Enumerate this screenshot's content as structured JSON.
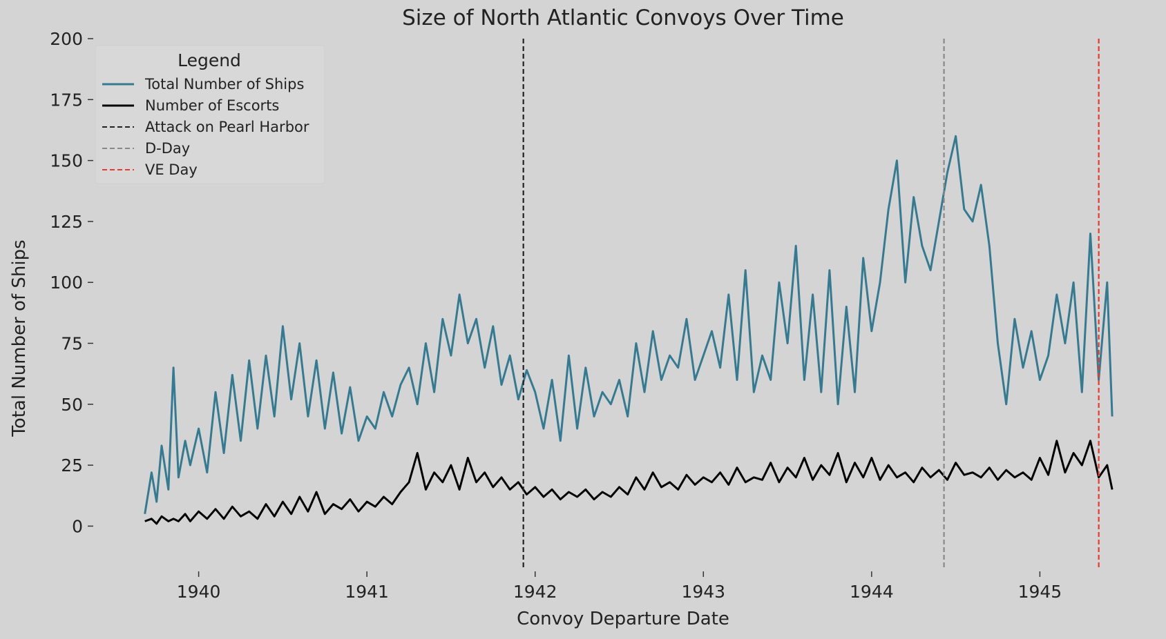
{
  "chart_data": {
    "type": "line",
    "title": "Size of North Atlantic Convoys Over Time",
    "xlabel": "Convoy Departure Date",
    "ylabel": "Total Number of Ships",
    "xlim": [
      1939.55,
      1945.45
    ],
    "ylim": [
      -18,
      200
    ],
    "yticks": [
      0,
      25,
      50,
      75,
      100,
      125,
      150,
      175,
      200
    ],
    "xticks": [
      1940,
      1941,
      1942,
      1943,
      1944,
      1945
    ],
    "grid": false,
    "legend": {
      "title": "Legend",
      "placement": "top-left"
    },
    "series": [
      {
        "name": "Total Number of Ships",
        "color": "#347a91",
        "x": [
          1939.68,
          1939.72,
          1939.75,
          1939.78,
          1939.82,
          1939.85,
          1939.88,
          1939.92,
          1939.95,
          1940.0,
          1940.05,
          1940.1,
          1940.15,
          1940.2,
          1940.25,
          1940.3,
          1940.35,
          1940.4,
          1940.45,
          1940.5,
          1940.55,
          1940.6,
          1940.65,
          1940.7,
          1940.75,
          1940.8,
          1940.85,
          1940.9,
          1940.95,
          1941.0,
          1941.05,
          1941.1,
          1941.15,
          1941.2,
          1941.25,
          1941.3,
          1941.35,
          1941.4,
          1941.45,
          1941.5,
          1941.55,
          1941.6,
          1941.65,
          1941.7,
          1941.75,
          1941.8,
          1941.85,
          1941.9,
          1941.95,
          1942.0,
          1942.05,
          1942.1,
          1942.15,
          1942.2,
          1942.25,
          1942.3,
          1942.35,
          1942.4,
          1942.45,
          1942.5,
          1942.55,
          1942.6,
          1942.65,
          1942.7,
          1942.75,
          1942.8,
          1942.85,
          1942.9,
          1942.95,
          1943.0,
          1943.05,
          1943.1,
          1943.15,
          1943.2,
          1943.25,
          1943.3,
          1943.35,
          1943.4,
          1943.45,
          1943.5,
          1943.55,
          1943.6,
          1943.65,
          1943.7,
          1943.75,
          1943.8,
          1943.85,
          1943.9,
          1943.95,
          1944.0,
          1944.05,
          1944.1,
          1944.15,
          1944.2,
          1944.25,
          1944.3,
          1944.35,
          1944.4,
          1944.45,
          1944.5,
          1944.55,
          1944.6,
          1944.65,
          1944.7,
          1944.75,
          1944.8,
          1944.85,
          1944.9,
          1944.95,
          1945.0,
          1945.05,
          1945.1,
          1945.15,
          1945.2,
          1945.25,
          1945.3,
          1945.35,
          1945.4,
          1945.43
        ],
        "y": [
          5,
          22,
          10,
          33,
          15,
          65,
          20,
          35,
          25,
          40,
          22,
          55,
          30,
          62,
          35,
          68,
          40,
          70,
          45,
          82,
          52,
          75,
          45,
          68,
          40,
          63,
          38,
          57,
          35,
          45,
          40,
          55,
          45,
          58,
          65,
          50,
          75,
          55,
          85,
          70,
          95,
          75,
          85,
          65,
          82,
          58,
          70,
          52,
          64,
          55,
          40,
          60,
          35,
          70,
          40,
          65,
          45,
          55,
          50,
          60,
          45,
          75,
          55,
          80,
          60,
          70,
          65,
          85,
          60,
          70,
          80,
          65,
          95,
          60,
          105,
          55,
          70,
          60,
          100,
          75,
          115,
          60,
          95,
          55,
          105,
          50,
          90,
          55,
          110,
          80,
          100,
          130,
          150,
          100,
          135,
          115,
          105,
          125,
          145,
          160,
          130,
          125,
          140,
          115,
          75,
          50,
          85,
          65,
          80,
          60,
          70,
          95,
          75,
          100,
          55,
          120,
          60,
          100,
          45
        ]
      },
      {
        "name": "Number of Escorts",
        "color": "#000000",
        "x": [
          1939.68,
          1939.72,
          1939.75,
          1939.78,
          1939.82,
          1939.85,
          1939.88,
          1939.92,
          1939.95,
          1940.0,
          1940.05,
          1940.1,
          1940.15,
          1940.2,
          1940.25,
          1940.3,
          1940.35,
          1940.4,
          1940.45,
          1940.5,
          1940.55,
          1940.6,
          1940.65,
          1940.7,
          1940.75,
          1940.8,
          1940.85,
          1940.9,
          1940.95,
          1941.0,
          1941.05,
          1941.1,
          1941.15,
          1941.2,
          1941.25,
          1941.3,
          1941.35,
          1941.4,
          1941.45,
          1941.5,
          1941.55,
          1941.6,
          1941.65,
          1941.7,
          1941.75,
          1941.8,
          1941.85,
          1941.9,
          1941.95,
          1942.0,
          1942.05,
          1942.1,
          1942.15,
          1942.2,
          1942.25,
          1942.3,
          1942.35,
          1942.4,
          1942.45,
          1942.5,
          1942.55,
          1942.6,
          1942.65,
          1942.7,
          1942.75,
          1942.8,
          1942.85,
          1942.9,
          1942.95,
          1943.0,
          1943.05,
          1943.1,
          1943.15,
          1943.2,
          1943.25,
          1943.3,
          1943.35,
          1943.4,
          1943.45,
          1943.5,
          1943.55,
          1943.6,
          1943.65,
          1943.7,
          1943.75,
          1943.8,
          1943.85,
          1943.9,
          1943.95,
          1944.0,
          1944.05,
          1944.1,
          1944.15,
          1944.2,
          1944.25,
          1944.3,
          1944.35,
          1944.4,
          1944.45,
          1944.5,
          1944.55,
          1944.6,
          1944.65,
          1944.7,
          1944.75,
          1944.8,
          1944.85,
          1944.9,
          1944.95,
          1945.0,
          1945.05,
          1945.1,
          1945.15,
          1945.2,
          1945.25,
          1945.3,
          1945.35,
          1945.4,
          1945.43
        ],
        "y": [
          2,
          3,
          1,
          4,
          2,
          3,
          2,
          5,
          2,
          6,
          3,
          7,
          3,
          8,
          4,
          6,
          3,
          9,
          4,
          10,
          5,
          12,
          6,
          14,
          5,
          9,
          7,
          11,
          6,
          10,
          8,
          12,
          9,
          14,
          18,
          30,
          15,
          22,
          18,
          25,
          15,
          28,
          18,
          22,
          16,
          20,
          15,
          18,
          13,
          16,
          12,
          15,
          11,
          14,
          12,
          15,
          11,
          14,
          12,
          16,
          13,
          20,
          15,
          22,
          16,
          18,
          15,
          21,
          17,
          20,
          18,
          22,
          17,
          24,
          18,
          20,
          19,
          26,
          18,
          24,
          20,
          28,
          19,
          25,
          21,
          30,
          18,
          26,
          20,
          28,
          19,
          25,
          20,
          22,
          18,
          24,
          20,
          23,
          19,
          26,
          21,
          22,
          20,
          24,
          19,
          23,
          20,
          22,
          19,
          28,
          21,
          35,
          22,
          30,
          25,
          35,
          20,
          25,
          15
        ]
      }
    ],
    "reference_lines": [
      {
        "name": "Attack on Pearl Harbor",
        "x": 1941.93,
        "color": "#222222"
      },
      {
        "name": "D-Day",
        "x": 1944.43,
        "color": "#888888"
      },
      {
        "name": "VE Day",
        "x": 1945.35,
        "color": "#e8392a"
      }
    ]
  }
}
